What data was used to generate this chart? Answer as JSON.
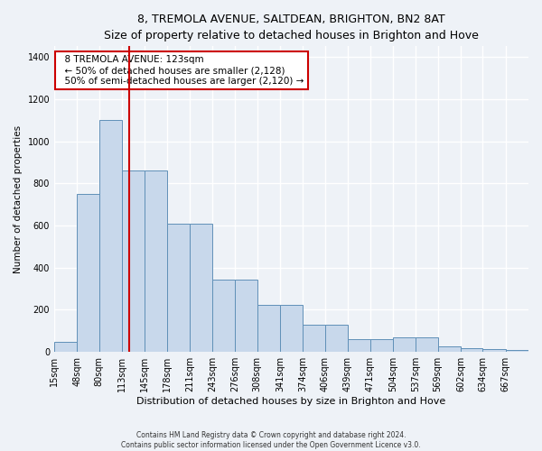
{
  "title1": "8, TREMOLA AVENUE, SALTDEAN, BRIGHTON, BN2 8AT",
  "title2": "Size of property relative to detached houses in Brighton and Hove",
  "xlabel": "Distribution of detached houses by size in Brighton and Hove",
  "ylabel": "Number of detached properties",
  "footer1": "Contains HM Land Registry data © Crown copyright and database right 2024.",
  "footer2": "Contains public sector information licensed under the Open Government Licence v3.0.",
  "annotation_line1": "8 TREMOLA AVENUE: 123sqm",
  "annotation_line2": "← 50% of detached houses are smaller (2,128)",
  "annotation_line3": "50% of semi-detached houses are larger (2,120) →",
  "bar_color": "#c8d8eb",
  "bar_edge_color": "#6090b8",
  "ref_line_color": "#cc0000",
  "ref_line_x": 123,
  "categories": [
    "15sqm",
    "48sqm",
    "80sqm",
    "113sqm",
    "145sqm",
    "178sqm",
    "211sqm",
    "243sqm",
    "276sqm",
    "308sqm",
    "341sqm",
    "374sqm",
    "406sqm",
    "439sqm",
    "471sqm",
    "504sqm",
    "537sqm",
    "569sqm",
    "602sqm",
    "634sqm",
    "667sqm"
  ],
  "bin_edges": [
    15,
    48,
    80,
    113,
    145,
    178,
    211,
    243,
    276,
    308,
    341,
    374,
    406,
    439,
    471,
    504,
    537,
    569,
    602,
    634,
    667,
    700
  ],
  "values": [
    50,
    750,
    1100,
    860,
    860,
    610,
    610,
    345,
    345,
    225,
    225,
    130,
    130,
    60,
    60,
    70,
    70,
    25,
    20,
    15,
    10
  ],
  "ylim": [
    0,
    1450
  ],
  "yticks": [
    0,
    200,
    400,
    600,
    800,
    1000,
    1200,
    1400
  ],
  "background_color": "#eef2f7",
  "grid_color": "#ffffff"
}
